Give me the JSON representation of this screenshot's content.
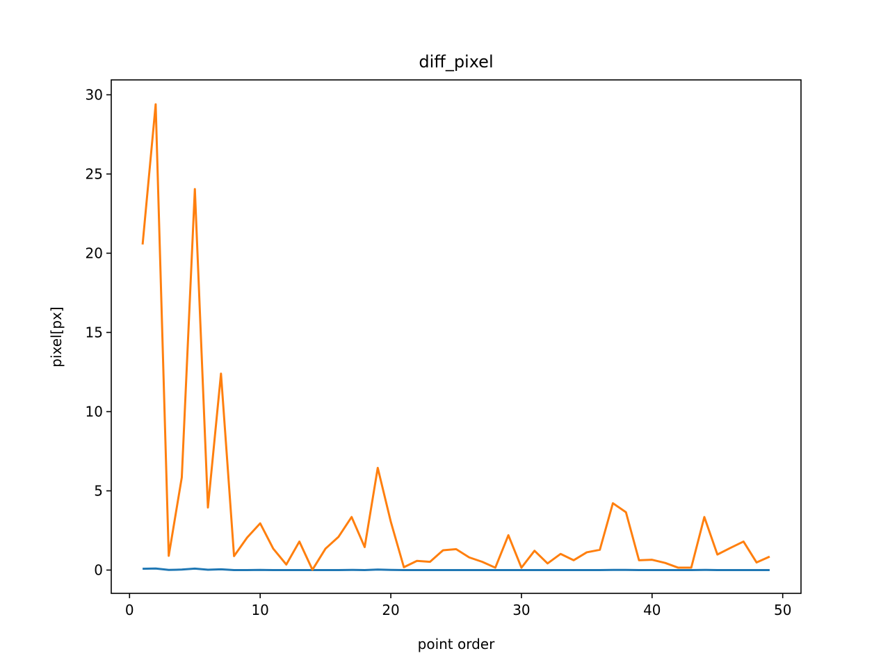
{
  "chart_data": {
    "type": "line",
    "title": "diff_pixel",
    "xlabel": "point order",
    "ylabel": "pixel[px]",
    "xlim": [
      -1.4,
      51.4
    ],
    "ylim": [
      -1.47,
      30.94
    ],
    "xticks": [
      0,
      10,
      20,
      30,
      40,
      50
    ],
    "yticks": [
      0,
      5,
      10,
      15,
      20,
      25,
      30
    ],
    "grid": false,
    "x": [
      1,
      2,
      3,
      4,
      5,
      6,
      7,
      8,
      9,
      10,
      11,
      12,
      13,
      14,
      15,
      16,
      17,
      18,
      19,
      20,
      21,
      22,
      23,
      24,
      25,
      26,
      27,
      28,
      29,
      30,
      31,
      32,
      33,
      34,
      35,
      36,
      37,
      38,
      39,
      40,
      41,
      42,
      43,
      44,
      45,
      46,
      47,
      48,
      49
    ],
    "series": [
      {
        "color": "#1f77b4",
        "values": [
          0.08,
          0.1,
          0.01,
          0.03,
          0.09,
          0.02,
          0.05,
          0.0,
          0.0,
          0.01,
          0.0,
          0.0,
          0.0,
          0.0,
          0.0,
          0.0,
          0.01,
          0.0,
          0.03,
          0.01,
          0.0,
          0.0,
          0.0,
          0.0,
          0.0,
          0.0,
          0.0,
          0.0,
          0.0,
          0.0,
          0.0,
          0.0,
          0.0,
          0.0,
          0.0,
          0.0,
          0.01,
          0.01,
          0.0,
          0.0,
          0.0,
          0.0,
          0.0,
          0.01,
          0.0,
          0.0,
          0.0,
          0.0,
          0.0
        ]
      },
      {
        "color": "#ff7f0e",
        "values": [
          20.55,
          29.4,
          0.9,
          5.85,
          24.05,
          3.95,
          12.4,
          0.88,
          2.05,
          2.95,
          1.35,
          0.35,
          1.8,
          0.02,
          1.35,
          2.1,
          3.35,
          1.45,
          6.45,
          3.05,
          0.18,
          0.58,
          0.52,
          1.25,
          1.32,
          0.8,
          0.52,
          0.15,
          2.2,
          0.15,
          1.22,
          0.42,
          1.02,
          0.62,
          1.12,
          1.28,
          4.22,
          3.65,
          0.62,
          0.65,
          0.45,
          0.15,
          0.15,
          3.35,
          0.98,
          1.4,
          1.8,
          0.48,
          0.85
        ]
      }
    ]
  }
}
